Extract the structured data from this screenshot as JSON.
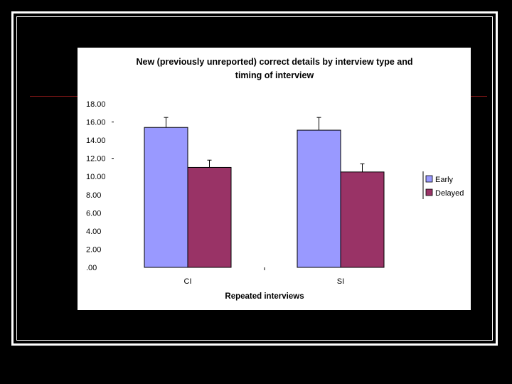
{
  "chart_data": {
    "type": "bar",
    "title_line1": "New (previously unreported) correct details by interview type and",
    "title_line2": "timing of interview",
    "xlabel": "Repeated interviews",
    "ylabel": "",
    "categories": [
      "CI",
      "SI"
    ],
    "series": [
      {
        "name": "Early",
        "values": [
          15.4,
          15.1
        ],
        "error": [
          1.1,
          1.4
        ],
        "color": "#9999ff"
      },
      {
        "name": "Delayed",
        "values": [
          11.0,
          10.5
        ],
        "error": [
          0.8,
          0.9
        ],
        "color": "#993366"
      }
    ],
    "ylim": [
      0,
      18
    ],
    "yticks": [
      "18.00",
      "16.00",
      "14.00",
      "12.00",
      "10.00",
      "8.00",
      "6.00",
      "4.00",
      "2.00",
      ".00"
    ],
    "ytick_values": [
      18,
      16,
      14,
      12,
      10,
      8,
      6,
      4,
      2,
      0
    ],
    "legend_position": "right",
    "grid": false
  }
}
